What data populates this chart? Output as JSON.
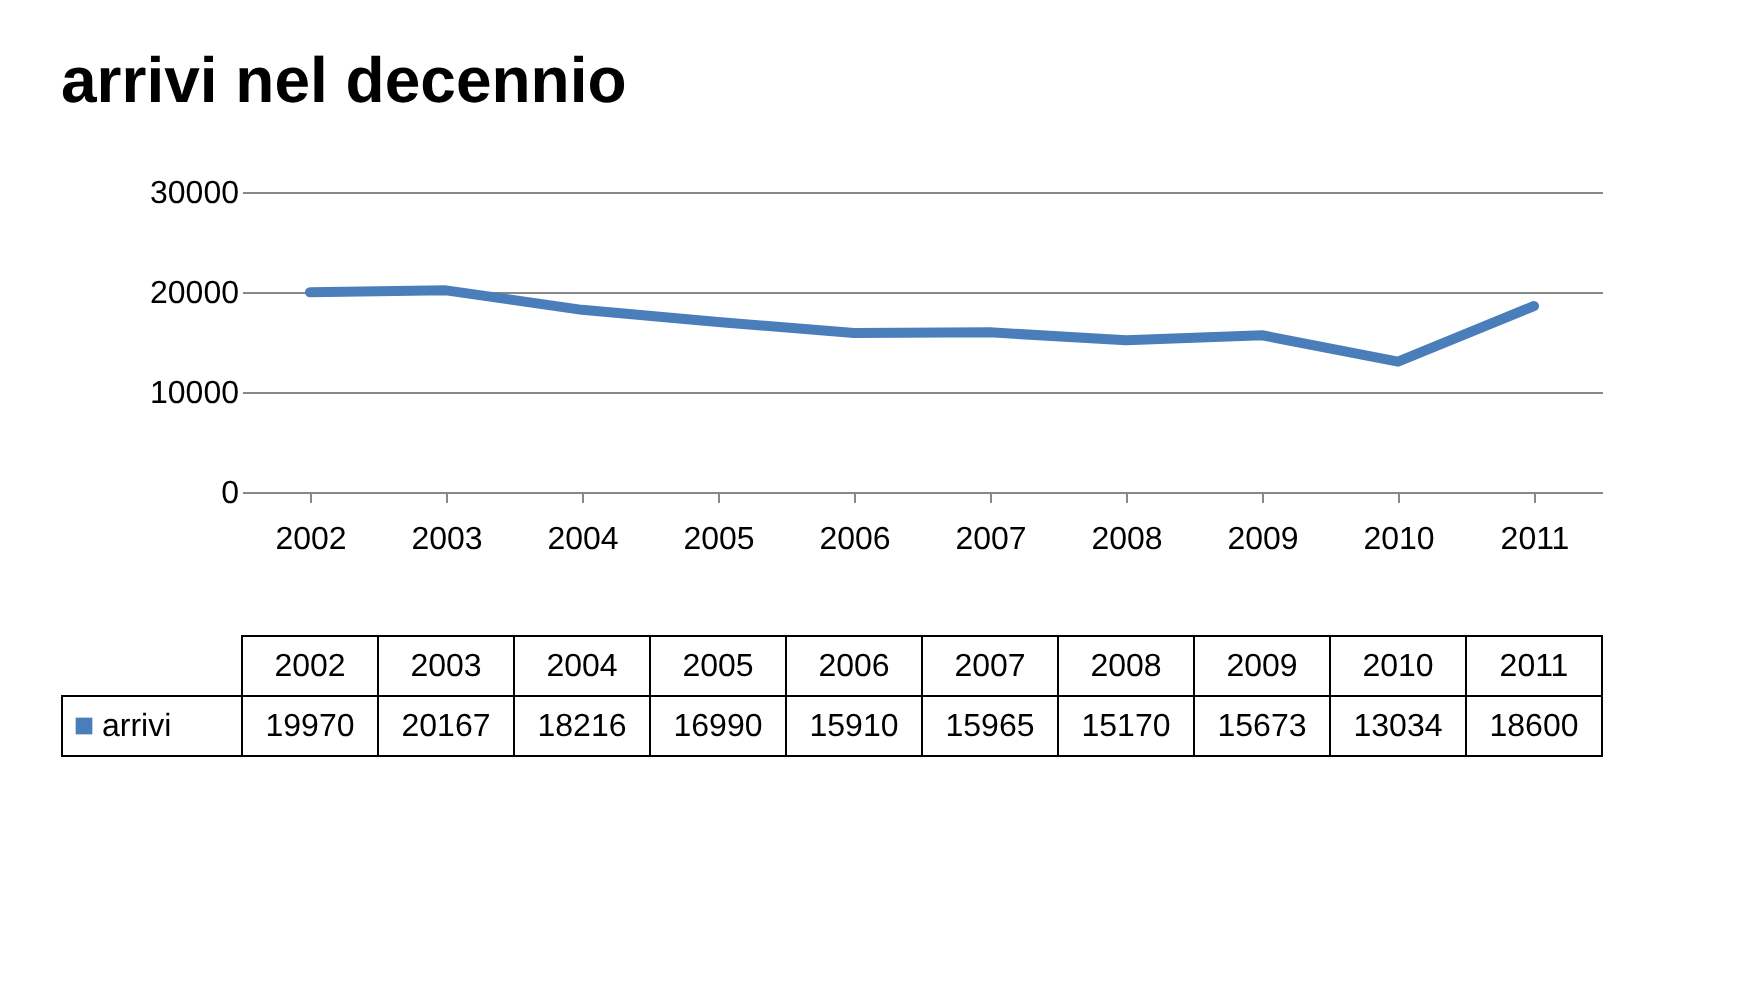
{
  "chart_data": {
    "type": "line",
    "title": "arrivi nel decennio",
    "categories": [
      "2002",
      "2003",
      "2004",
      "2005",
      "2006",
      "2007",
      "2008",
      "2009",
      "2010",
      "2011"
    ],
    "series": [
      {
        "name": "arrivi",
        "color": "#4a7ebb",
        "values": [
          19970,
          20167,
          18216,
          16990,
          15910,
          15965,
          15170,
          15673,
          13034,
          18600
        ]
      }
    ],
    "ylim": [
      0,
      30000
    ],
    "yticks": [
      0,
      10000,
      20000,
      30000
    ],
    "grid": "y",
    "legend": "bottom",
    "data_labels": true
  }
}
